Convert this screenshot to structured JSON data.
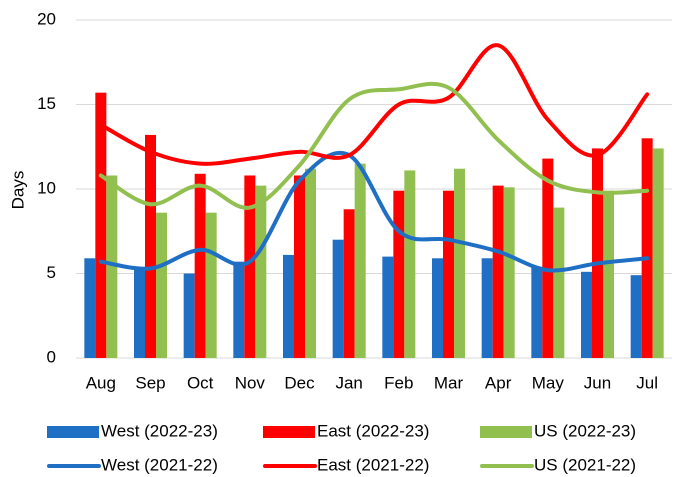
{
  "chart_data": {
    "type": "bar",
    "y_label": "Days",
    "categories": [
      "Aug",
      "Sep",
      "Oct",
      "Nov",
      "Dec",
      "Jan",
      "Feb",
      "Mar",
      "Apr",
      "May",
      "Jun",
      "Jul"
    ],
    "ylim": [
      0,
      20
    ],
    "yticks": [
      0,
      5,
      10,
      15,
      20
    ],
    "grid": true,
    "series": [
      {
        "name": "West (2022-23)",
        "type": "bar",
        "color": "#1f6fc5",
        "values": [
          5.9,
          5.3,
          5.0,
          5.7,
          6.1,
          7.0,
          6.0,
          5.9,
          5.9,
          5.4,
          5.1,
          4.9
        ]
      },
      {
        "name": "East (2022-23)",
        "type": "bar",
        "color": "#ff0000",
        "values": [
          15.7,
          13.2,
          10.9,
          10.8,
          10.8,
          8.8,
          9.9,
          9.9,
          10.2,
          11.8,
          12.4,
          13.0
        ]
      },
      {
        "name": "US (2022-23)",
        "type": "bar",
        "color": "#92c050",
        "values": [
          10.8,
          8.6,
          8.6,
          10.2,
          11.2,
          11.5,
          11.1,
          11.2,
          10.1,
          8.9,
          9.9,
          12.4
        ]
      },
      {
        "name": "West (2021-22)",
        "type": "line",
        "color": "#1f6fc5",
        "values": [
          5.7,
          5.3,
          6.4,
          5.7,
          10.5,
          12.0,
          7.5,
          7.0,
          6.3,
          5.2,
          5.6,
          5.9
        ]
      },
      {
        "name": "East (2021-22)",
        "type": "line",
        "color": "#ff0000",
        "values": [
          13.8,
          12.2,
          11.5,
          11.8,
          12.2,
          12.0,
          15.0,
          15.4,
          18.5,
          14.1,
          12.0,
          15.6
        ]
      },
      {
        "name": "US (2021-22)",
        "type": "line",
        "color": "#92c050",
        "values": [
          10.8,
          9.1,
          10.2,
          8.9,
          11.4,
          15.3,
          15.9,
          16.0,
          12.9,
          10.5,
          9.8,
          9.9
        ]
      }
    ]
  }
}
